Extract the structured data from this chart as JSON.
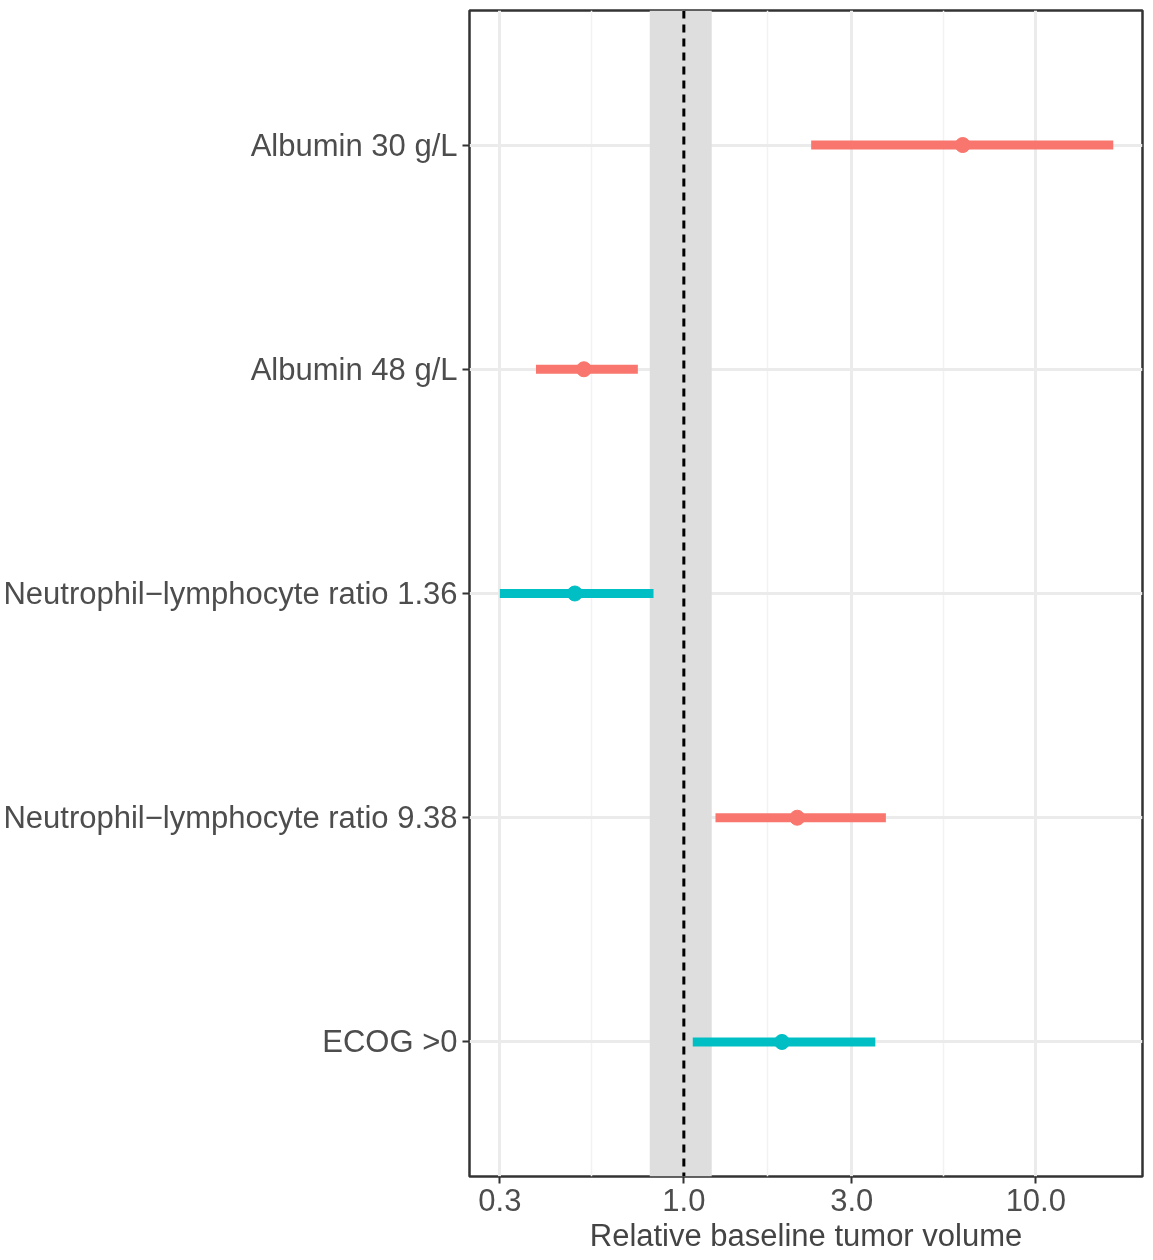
{
  "chart_data": {
    "type": "scatter",
    "orientation": "horizontal",
    "xlabel": "Relative baseline tumor volume",
    "categories": [
      "Albumin 30 g/L",
      "Albumin 48 g/L",
      "Neutrophil−lymphocyte ratio 1.36",
      "Neutrophil−lymphocyte ratio 9.38",
      "ECOG >0"
    ],
    "series": [
      {
        "color": "#f8766d",
        "values": [
          6.2,
          0.52,
          null,
          2.1,
          null
        ],
        "errors": [
          [
            2.3,
            16.6
          ],
          [
            0.38,
            0.74
          ],
          null,
          [
            1.23,
            3.75
          ],
          null
        ]
      },
      {
        "color": "#00bfc4",
        "values": [
          null,
          null,
          0.49,
          null,
          1.9
        ],
        "errors": [
          null,
          null,
          [
            0.3,
            0.82
          ],
          null,
          [
            1.06,
            3.5
          ]
        ]
      }
    ],
    "log": "x",
    "xlim": [
      0.246,
      20.1
    ],
    "xticks": [
      0.3,
      {
        "value": 1,
        "label": "1.0"
      },
      {
        "value": 3,
        "label": "3.0"
      },
      {
        "value": 10,
        "label": "10.0"
      }
    ],
    "ref_lines": [
      {
        "axis": "x",
        "value": 1,
        "color": "#000000",
        "line_style": "dashed"
      }
    ],
    "bands": [
      {
        "axis": "x",
        "from": 0.8,
        "to": 1.2,
        "color": "#dedede"
      }
    ],
    "grid": true,
    "marker": "circle"
  }
}
